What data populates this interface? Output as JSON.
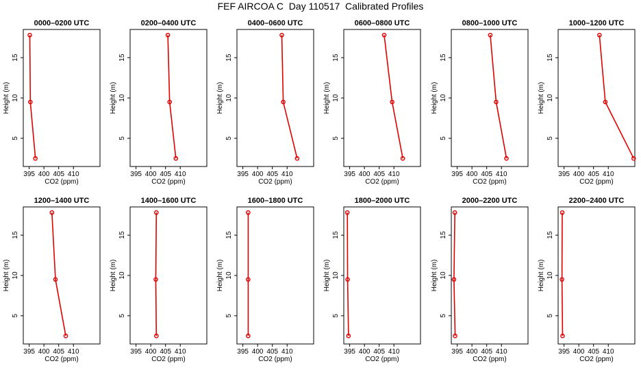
{
  "title": "FEF AIRCOA C  Day 110517  Calibrated Profiles",
  "chart_data": [
    {
      "type": "line",
      "title": "0000–0200 UTC",
      "xlabel": "CO2 (ppm)",
      "ylabel": "Height (m)",
      "xlim": [
        393,
        419
      ],
      "ylim": [
        1.5,
        18.5
      ],
      "xticks": [
        395,
        400,
        405,
        410
      ],
      "yticks": [
        5,
        10,
        15
      ],
      "x": [
        395.2,
        395.4,
        397.1
      ],
      "y": [
        17.8,
        9.5,
        2.5
      ],
      "series_color": "#e00000"
    },
    {
      "type": "line",
      "title": "0200–0400 UTC",
      "xlabel": "CO2 (ppm)",
      "ylabel": "Height (m)",
      "xlim": [
        393,
        419
      ],
      "ylim": [
        1.5,
        18.5
      ],
      "xticks": [
        395,
        400,
        405,
        410
      ],
      "yticks": [
        5,
        10,
        15
      ],
      "x": [
        405.8,
        406.4,
        408.5
      ],
      "y": [
        17.8,
        9.5,
        2.5
      ],
      "series_color": "#e00000"
    },
    {
      "type": "line",
      "title": "0400–0600 UTC",
      "xlabel": "CO2 (ppm)",
      "ylabel": "Height (m)",
      "xlim": [
        393,
        419
      ],
      "ylim": [
        1.5,
        18.5
      ],
      "xticks": [
        395,
        400,
        405,
        410
      ],
      "yticks": [
        5,
        10,
        15
      ],
      "x": [
        408.2,
        408.7,
        413.4
      ],
      "y": [
        17.8,
        9.5,
        2.5
      ],
      "series_color": "#e00000"
    },
    {
      "type": "line",
      "title": "0600–0800 UTC",
      "xlabel": "CO2 (ppm)",
      "ylabel": "Height (m)",
      "xlim": [
        393,
        419
      ],
      "ylim": [
        1.5,
        18.5
      ],
      "xticks": [
        395,
        400,
        405,
        410
      ],
      "yticks": [
        5,
        10,
        15
      ],
      "x": [
        406.7,
        409.4,
        413.0
      ],
      "y": [
        17.8,
        9.5,
        2.5
      ],
      "series_color": "#e00000"
    },
    {
      "type": "line",
      "title": "0800–1000 UTC",
      "xlabel": "CO2 (ppm)",
      "ylabel": "Height (m)",
      "xlim": [
        393,
        419
      ],
      "ylim": [
        1.5,
        18.5
      ],
      "xticks": [
        395,
        400,
        405,
        410
      ],
      "yticks": [
        5,
        10,
        15
      ],
      "x": [
        406.2,
        408.2,
        411.7
      ],
      "y": [
        17.8,
        9.5,
        2.5
      ],
      "series_color": "#e00000"
    },
    {
      "type": "line",
      "title": "1000–1200 UTC",
      "xlabel": "CO2 (ppm)",
      "ylabel": "Height (m)",
      "xlim": [
        393,
        419
      ],
      "ylim": [
        1.5,
        18.5
      ],
      "xticks": [
        395,
        400,
        405,
        410
      ],
      "yticks": [
        5,
        10,
        15
      ],
      "x": [
        407.0,
        409.0,
        418.6
      ],
      "y": [
        17.8,
        9.5,
        2.5
      ],
      "series_color": "#e00000"
    },
    {
      "type": "line",
      "title": "1200–1400 UTC",
      "xlabel": "CO2 (ppm)",
      "ylabel": "Height (m)",
      "xlim": [
        393,
        419
      ],
      "ylim": [
        1.5,
        18.5
      ],
      "xticks": [
        395,
        400,
        405,
        410
      ],
      "yticks": [
        5,
        10,
        15
      ],
      "x": [
        402.7,
        403.9,
        407.4
      ],
      "y": [
        17.8,
        9.5,
        2.5
      ],
      "series_color": "#e00000"
    },
    {
      "type": "line",
      "title": "1400–1600 UTC",
      "xlabel": "CO2 (ppm)",
      "ylabel": "Height (m)",
      "xlim": [
        393,
        419
      ],
      "ylim": [
        1.5,
        18.5
      ],
      "xticks": [
        395,
        400,
        405,
        410
      ],
      "yticks": [
        5,
        10,
        15
      ],
      "x": [
        401.9,
        401.7,
        401.9
      ],
      "y": [
        17.8,
        9.5,
        2.5
      ],
      "series_color": "#e00000"
    },
    {
      "type": "line",
      "title": "1600–1800 UTC",
      "xlabel": "CO2 (ppm)",
      "ylabel": "Height (m)",
      "xlim": [
        393,
        419
      ],
      "ylim": [
        1.5,
        18.5
      ],
      "xticks": [
        395,
        400,
        405,
        410
      ],
      "yticks": [
        5,
        10,
        15
      ],
      "x": [
        396.8,
        396.8,
        396.8
      ],
      "y": [
        17.8,
        9.5,
        2.5
      ],
      "series_color": "#e00000"
    },
    {
      "type": "line",
      "title": "1800–2000 UTC",
      "xlabel": "CO2 (ppm)",
      "ylabel": "Height (m)",
      "xlim": [
        393,
        419
      ],
      "ylim": [
        1.5,
        18.5
      ],
      "xticks": [
        395,
        400,
        405,
        410
      ],
      "yticks": [
        5,
        10,
        15
      ],
      "x": [
        394.2,
        394.3,
        394.6
      ],
      "y": [
        17.8,
        9.5,
        2.5
      ],
      "series_color": "#e00000"
    },
    {
      "type": "line",
      "title": "2000–2200 UTC",
      "xlabel": "CO2 (ppm)",
      "ylabel": "Height (m)",
      "xlim": [
        393,
        419
      ],
      "ylim": [
        1.5,
        18.5
      ],
      "xticks": [
        395,
        400,
        405,
        410
      ],
      "yticks": [
        5,
        10,
        15
      ],
      "x": [
        394.2,
        393.9,
        394.3
      ],
      "y": [
        17.8,
        9.5,
        2.5
      ],
      "series_color": "#e00000"
    },
    {
      "type": "line",
      "title": "2200–2400 UTC",
      "xlabel": "CO2 (ppm)",
      "ylabel": "Height (m)",
      "xlim": [
        393,
        419
      ],
      "ylim": [
        1.5,
        18.5
      ],
      "xticks": [
        395,
        400,
        405,
        410
      ],
      "yticks": [
        5,
        10,
        15
      ],
      "x": [
        394.4,
        394.3,
        394.5
      ],
      "y": [
        17.8,
        9.5,
        2.5
      ],
      "series_color": "#e00000"
    }
  ]
}
